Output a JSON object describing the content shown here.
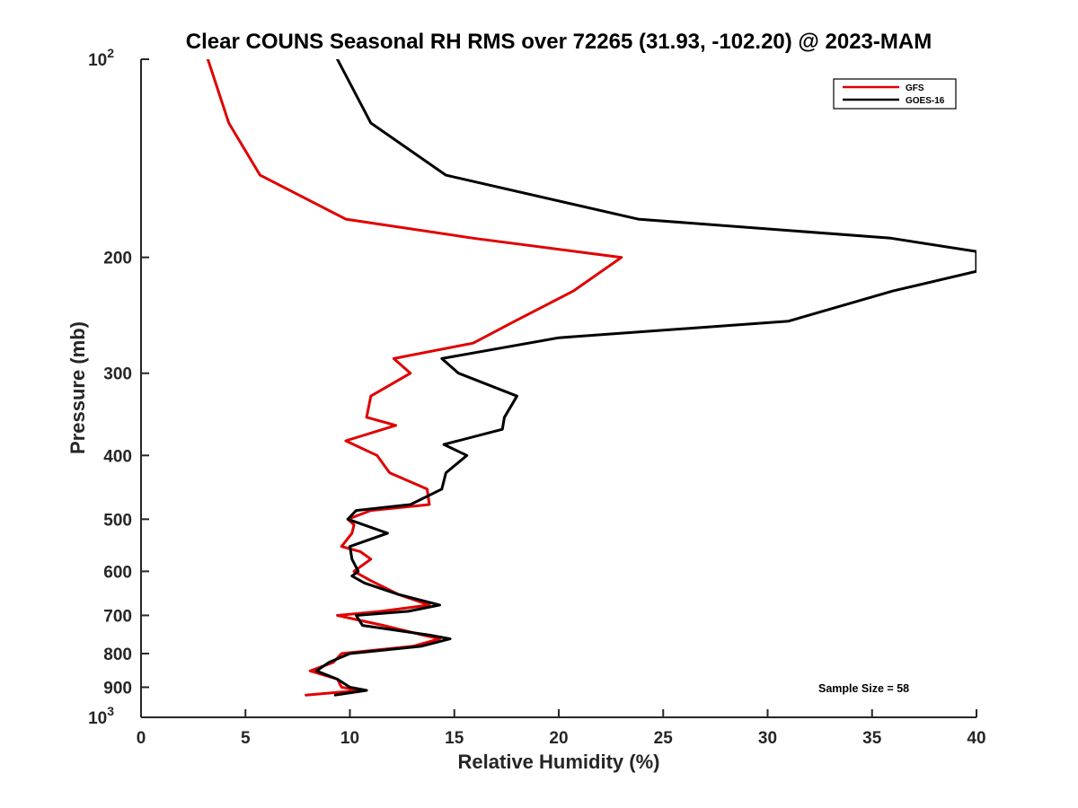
{
  "chart_data": {
    "type": "line",
    "title": "Clear COUNS Seasonal RH RMS over 72265 (31.93, -102.20) @ 2023-MAM",
    "xlabel": "Relative Humidity (%)",
    "ylabel": "Pressure (mb)",
    "xlim": [
      0,
      40
    ],
    "ylim": [
      100,
      1000
    ],
    "yscale": "log",
    "y_reversed": true,
    "grid": false,
    "legend_position": "top-right",
    "x_ticks": [
      "0",
      "5",
      "10",
      "15",
      "20",
      "25",
      "30",
      "35",
      "40"
    ],
    "y_ticks": [
      {
        "value": 100,
        "label": "10",
        "exponent": "2"
      },
      {
        "value": 200,
        "label": "200"
      },
      {
        "value": 300,
        "label": "300"
      },
      {
        "value": 400,
        "label": "400"
      },
      {
        "value": 500,
        "label": "500"
      },
      {
        "value": 600,
        "label": "600"
      },
      {
        "value": 700,
        "label": "700"
      },
      {
        "value": 800,
        "label": "800"
      },
      {
        "value": 900,
        "label": "900"
      },
      {
        "value": 1000,
        "label": "10",
        "exponent": "3"
      }
    ],
    "annotation": "Sample Size = 58",
    "series": [
      {
        "name": "GFS",
        "color": "#e00000",
        "points": [
          [
            3.2,
            100
          ],
          [
            4.2,
            125
          ],
          [
            5.7,
            150
          ],
          [
            9.8,
            175
          ],
          [
            15.9,
            187
          ],
          [
            23.0,
            200
          ],
          [
            20.7,
            225
          ],
          [
            17.9,
            250
          ],
          [
            15.9,
            270
          ],
          [
            12.1,
            285
          ],
          [
            12.9,
            300
          ],
          [
            11.0,
            325
          ],
          [
            10.8,
            350
          ],
          [
            12.2,
            360
          ],
          [
            9.8,
            380
          ],
          [
            11.3,
            400
          ],
          [
            11.9,
            425
          ],
          [
            13.7,
            450
          ],
          [
            13.8,
            475
          ],
          [
            11.0,
            485
          ],
          [
            9.9,
            500
          ],
          [
            10.2,
            510
          ],
          [
            10.1,
            525
          ],
          [
            9.6,
            550
          ],
          [
            10.5,
            560
          ],
          [
            11.0,
            575
          ],
          [
            10.2,
            600
          ],
          [
            11.0,
            620
          ],
          [
            12.3,
            650
          ],
          [
            13.8,
            675
          ],
          [
            11.5,
            690
          ],
          [
            9.4,
            700
          ],
          [
            11.6,
            725
          ],
          [
            13.5,
            750
          ],
          [
            14.3,
            760
          ],
          [
            13.0,
            780
          ],
          [
            9.6,
            800
          ],
          [
            9.2,
            825
          ],
          [
            8.1,
            850
          ],
          [
            9.4,
            875
          ],
          [
            9.6,
            900
          ],
          [
            10.5,
            910
          ],
          [
            7.9,
            925
          ]
        ]
      },
      {
        "name": "GOES-16",
        "color": "#000000",
        "points": [
          [
            9.4,
            100
          ],
          [
            11.0,
            125
          ],
          [
            14.6,
            150
          ],
          [
            23.8,
            175
          ],
          [
            35.9,
            187
          ],
          [
            40.0,
            196
          ],
          [
            40.0,
            210
          ],
          [
            36.0,
            225
          ],
          [
            31.0,
            250
          ],
          [
            20.0,
            265
          ],
          [
            14.4,
            285
          ],
          [
            15.2,
            300
          ],
          [
            18.0,
            325
          ],
          [
            17.4,
            350
          ],
          [
            17.3,
            365
          ],
          [
            14.5,
            385
          ],
          [
            15.6,
            400
          ],
          [
            14.6,
            425
          ],
          [
            14.4,
            450
          ],
          [
            12.9,
            475
          ],
          [
            10.3,
            485
          ],
          [
            9.9,
            500
          ],
          [
            11.8,
            525
          ],
          [
            10.0,
            550
          ],
          [
            10.1,
            575
          ],
          [
            10.4,
            600
          ],
          [
            10.1,
            610
          ],
          [
            10.7,
            625
          ],
          [
            12.3,
            650
          ],
          [
            14.3,
            675
          ],
          [
            12.8,
            690
          ],
          [
            10.3,
            700
          ],
          [
            10.6,
            725
          ],
          [
            13.8,
            750
          ],
          [
            14.8,
            760
          ],
          [
            13.4,
            780
          ],
          [
            10.0,
            800
          ],
          [
            9.0,
            825
          ],
          [
            8.4,
            850
          ],
          [
            9.4,
            875
          ],
          [
            10.0,
            900
          ],
          [
            10.8,
            910
          ],
          [
            9.3,
            925
          ]
        ]
      }
    ]
  }
}
